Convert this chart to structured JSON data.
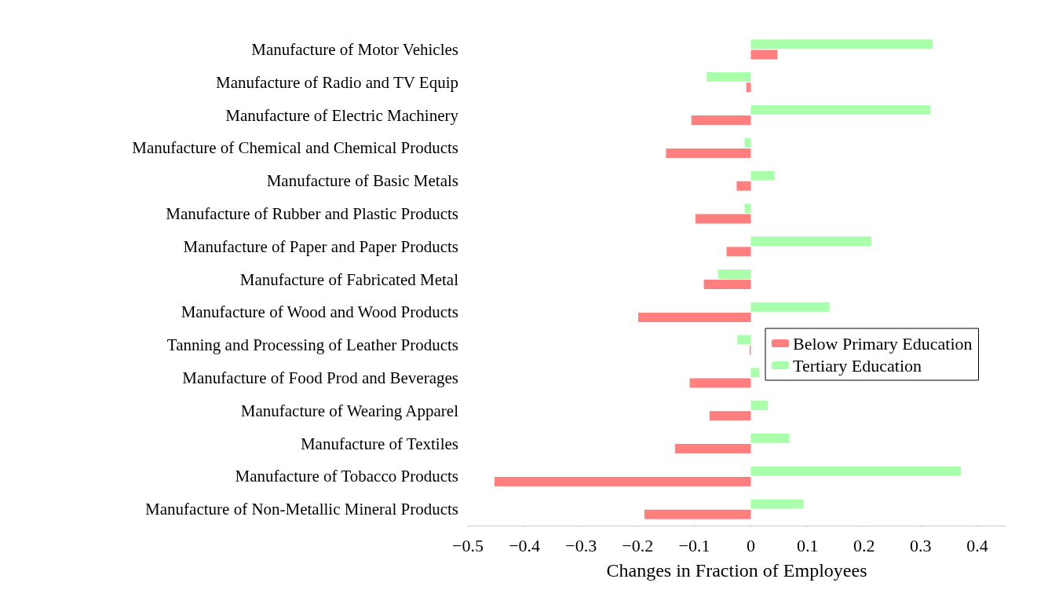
{
  "chart_data": {
    "type": "bar",
    "orientation": "horizontal",
    "xlabel": "Changes in Fraction of Employees",
    "categories": [
      "Manufacture of Motor Vehicles",
      "Manufacture of Radio and TV Equip",
      "Manufacture of Electric Machinery",
      "Manufacture of Chemical and Chemical Products",
      "Manufacture of Basic Metals",
      "Manufacture of Rubber and Plastic Products",
      "Manufacture of Paper and Paper Products",
      "Manufacture of Fabricated Metal",
      "Manufacture of Wood and Wood Products",
      "Tanning and Processing of Leather Products",
      "Manufacture of Food Prod and Beverages",
      "Manufacture of Wearing Apparel",
      "Manufacture of Textiles",
      "Manufacture of Tobacco Products",
      "Manufacture of Non-Metallic Mineral Products"
    ],
    "series": [
      {
        "name": "Below Primary Education",
        "color": "#ff7f7f",
        "values": [
          0.047,
          -0.008,
          -0.105,
          -0.15,
          -0.025,
          -0.098,
          -0.043,
          -0.083,
          -0.199,
          -0.002,
          -0.108,
          -0.073,
          -0.134,
          -0.453,
          -0.188
        ]
      },
      {
        "name": "Tertiary Education",
        "color": "#aaffaa",
        "values": [
          0.321,
          -0.078,
          0.317,
          -0.011,
          0.042,
          -0.011,
          0.213,
          -0.058,
          0.139,
          -0.024,
          0.015,
          0.03,
          0.068,
          0.371,
          0.093
        ]
      }
    ],
    "xlim": [
      -0.5,
      0.45
    ],
    "xticks": [
      {
        "value": -0.5,
        "label": "−0.5"
      },
      {
        "value": -0.4,
        "label": "−0.4"
      },
      {
        "value": -0.3,
        "label": "−0.3"
      },
      {
        "value": -0.2,
        "label": "−0.2"
      },
      {
        "value": -0.1,
        "label": "−0.1"
      },
      0,
      0.1,
      0.2,
      0.3,
      0.4
    ],
    "legend": "right",
    "grid": false
  }
}
